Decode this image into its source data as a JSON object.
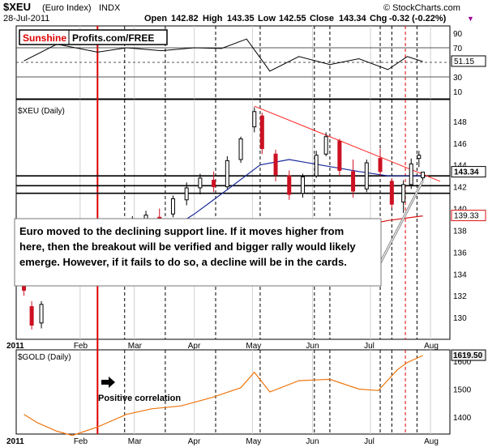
{
  "header": {
    "symbol": "$XEU",
    "name": "(Euro Index)",
    "exchange": "INDX",
    "date": "28-Jul-2011",
    "open_label": "Open",
    "open": "142.82",
    "high_label": "High",
    "high": "143.35",
    "low_label": "Low",
    "low": "142.55",
    "close_label": "Close",
    "close": "143.34",
    "chg_label": "Chg",
    "chg": "-0.32 (-0.22%)",
    "chg_marker": "▼",
    "copyright": "© StockCharts.com"
  },
  "watermark": {
    "brand_red": "Sunshine",
    "brand_black": "Profits.com/FREE"
  },
  "colors": {
    "candle_up": "#000000",
    "candle_down": "#cc1122",
    "ma_fast": "#1a2a9a",
    "ma_slow": "#dd1111",
    "resistance": "#ff2222",
    "gold": "#ee7711",
    "event_line": "#dd0000",
    "price_badge": "#ffffff",
    "gold_badge": "#eeeeee"
  },
  "annotations": {
    "commentary": [
      "Euro moved to the declining support line. If it moves higher from",
      "here, then the breakout will be verified and bigger rally would likely",
      "emerge. However, if it fails to do so, a decline will be in the cards."
    ],
    "positive_correlation": "Positive correlation"
  },
  "chart_data": [
    {
      "type": "line",
      "panel": "rsi",
      "ylim": [
        0,
        100
      ],
      "yticks": [
        "90",
        "70",
        "50",
        "30",
        "10"
      ],
      "levels": [
        70,
        50,
        30
      ],
      "last_value": "51.15",
      "x": [
        "2011-01-03",
        "2011-01-20",
        "2011-02-10",
        "2011-02-25",
        "2011-03-15",
        "2011-04-01",
        "2011-04-15",
        "2011-04-28",
        "2011-05-10",
        "2011-05-25",
        "2011-06-10",
        "2011-06-25",
        "2011-07-10",
        "2011-07-20",
        "2011-07-28"
      ],
      "values": [
        52,
        75,
        64,
        70,
        66,
        70,
        69,
        82,
        38,
        58,
        47,
        55,
        40,
        58,
        51.15
      ]
    },
    {
      "type": "candlestick",
      "panel": "price",
      "title": "$XEU (Daily)",
      "ylim": [
        128,
        150
      ],
      "yticks": [
        "148",
        "146",
        "144",
        "142",
        "140",
        "138",
        "136",
        "134",
        "132",
        "130"
      ],
      "xticks": [
        "2011",
        "Feb",
        "Mar",
        "Apr",
        "May",
        "Jun",
        "Jul",
        "Aug"
      ],
      "last_close": "143.34",
      "slow_ma_last": "139.33",
      "horizontal_levels": [
        143.0,
        142.1,
        141.4
      ],
      "candles": [
        {
          "date": "2011-01-03",
          "open": 133.0,
          "high": 134.0,
          "low": 132.0,
          "close": 132.5
        },
        {
          "date": "2011-01-07",
          "open": 131.0,
          "high": 131.5,
          "low": 128.9,
          "close": 129.3
        },
        {
          "date": "2011-01-12",
          "open": 129.5,
          "high": 131.5,
          "low": 129.0,
          "close": 131.2
        },
        {
          "date": "2011-01-18",
          "open": 133.5,
          "high": 135.5,
          "low": 133.0,
          "close": 135.2
        },
        {
          "date": "2011-01-24",
          "open": 135.8,
          "high": 137.0,
          "low": 135.5,
          "close": 136.7
        },
        {
          "date": "2011-01-31",
          "open": 136.6,
          "high": 138.5,
          "low": 136.2,
          "close": 137.9
        },
        {
          "date": "2011-02-07",
          "open": 137.2,
          "high": 137.8,
          "low": 135.5,
          "close": 136.0
        },
        {
          "date": "2011-02-14",
          "open": 136.0,
          "high": 137.2,
          "low": 135.6,
          "close": 136.8
        },
        {
          "date": "2011-02-21",
          "open": 137.0,
          "high": 138.5,
          "low": 136.8,
          "close": 138.2
        },
        {
          "date": "2011-02-28",
          "open": 138.2,
          "high": 139.3,
          "low": 137.9,
          "close": 139.0
        },
        {
          "date": "2011-03-07",
          "open": 139.0,
          "high": 139.8,
          "low": 138.2,
          "close": 139.4
        },
        {
          "date": "2011-03-14",
          "open": 139.2,
          "high": 140.0,
          "low": 138.0,
          "close": 138.7
        },
        {
          "date": "2011-03-21",
          "open": 139.5,
          "high": 141.2,
          "low": 139.2,
          "close": 140.9
        },
        {
          "date": "2011-03-28",
          "open": 140.8,
          "high": 142.4,
          "low": 140.3,
          "close": 141.9
        },
        {
          "date": "2011-04-04",
          "open": 141.9,
          "high": 143.2,
          "low": 141.3,
          "close": 142.8
        },
        {
          "date": "2011-04-11",
          "open": 142.6,
          "high": 143.4,
          "low": 141.5,
          "close": 142.0
        },
        {
          "date": "2011-04-18",
          "open": 142.0,
          "high": 144.8,
          "low": 141.8,
          "close": 144.4
        },
        {
          "date": "2011-04-25",
          "open": 144.5,
          "high": 146.6,
          "low": 144.2,
          "close": 146.4
        },
        {
          "date": "2011-05-02",
          "open": 147.5,
          "high": 149.3,
          "low": 147.0,
          "close": 148.9
        },
        {
          "date": "2011-05-06",
          "open": 148.5,
          "high": 148.8,
          "low": 145.0,
          "close": 145.5
        },
        {
          "date": "2011-05-13",
          "open": 145.0,
          "high": 145.4,
          "low": 142.5,
          "close": 143.1
        },
        {
          "date": "2011-05-20",
          "open": 143.0,
          "high": 143.5,
          "low": 140.8,
          "close": 141.3
        },
        {
          "date": "2011-05-27",
          "open": 141.4,
          "high": 143.2,
          "low": 141.0,
          "close": 142.9
        },
        {
          "date": "2011-06-03",
          "open": 143.0,
          "high": 145.3,
          "low": 142.8,
          "close": 144.9
        },
        {
          "date": "2011-06-08",
          "open": 145.0,
          "high": 147.0,
          "low": 144.8,
          "close": 146.6
        },
        {
          "date": "2011-06-15",
          "open": 146.2,
          "high": 146.4,
          "low": 143.0,
          "close": 143.5
        },
        {
          "date": "2011-06-22",
          "open": 143.4,
          "high": 144.5,
          "low": 141.0,
          "close": 141.6
        },
        {
          "date": "2011-06-29",
          "open": 141.8,
          "high": 144.5,
          "low": 141.5,
          "close": 144.2
        },
        {
          "date": "2011-07-06",
          "open": 144.6,
          "high": 145.5,
          "low": 143.0,
          "close": 143.4
        },
        {
          "date": "2011-07-12",
          "open": 142.5,
          "high": 142.8,
          "low": 140.0,
          "close": 140.4
        },
        {
          "date": "2011-07-18",
          "open": 140.6,
          "high": 142.6,
          "low": 139.6,
          "close": 142.2
        },
        {
          "date": "2011-07-22",
          "open": 142.2,
          "high": 144.6,
          "low": 141.8,
          "close": 144.1
        },
        {
          "date": "2011-07-26",
          "open": 144.6,
          "high": 145.3,
          "low": 143.8,
          "close": 144.9
        },
        {
          "date": "2011-07-28",
          "open": 142.82,
          "high": 143.35,
          "low": 142.55,
          "close": 143.34
        }
      ],
      "fast_ma": [
        {
          "x": "2011-02-01",
          "y": 133.2
        },
        {
          "x": "2011-02-20",
          "y": 135.0
        },
        {
          "x": "2011-03-10",
          "y": 137.0
        },
        {
          "x": "2011-04-01",
          "y": 139.5
        },
        {
          "x": "2011-04-20",
          "y": 142.0
        },
        {
          "x": "2011-05-05",
          "y": 144.0
        },
        {
          "x": "2011-05-20",
          "y": 144.5
        },
        {
          "x": "2011-06-05",
          "y": 144.0
        },
        {
          "x": "2011-06-25",
          "y": 143.4
        },
        {
          "x": "2011-07-10",
          "y": 143.0
        },
        {
          "x": "2011-07-28",
          "y": 143.0
        }
      ],
      "slow_ma": [
        {
          "x": "2011-01-01",
          "y": 133.4
        },
        {
          "x": "2011-02-15",
          "y": 134.0
        },
        {
          "x": "2011-03-15",
          "y": 134.6
        },
        {
          "x": "2011-04-15",
          "y": 135.6
        },
        {
          "x": "2011-05-15",
          "y": 136.8
        },
        {
          "x": "2011-06-15",
          "y": 138.0
        },
        {
          "x": "2011-07-10",
          "y": 138.9
        },
        {
          "x": "2011-07-28",
          "y": 139.33
        }
      ],
      "resistance_line": [
        {
          "x": "2011-05-02",
          "y": 149.4
        },
        {
          "x": "2011-08-06",
          "y": 142.5
        }
      ]
    },
    {
      "type": "line",
      "panel": "gold",
      "title": "$GOLD (Daily)",
      "ylim": [
        1340,
        1640
      ],
      "yticks": [
        "1600",
        "1500",
        "1400"
      ],
      "xticks": [
        "2011",
        "Feb",
        "Mar",
        "Apr",
        "May",
        "Jun",
        "Jul",
        "Aug"
      ],
      "last_value": "1619.50",
      "x": [
        "2011-01-03",
        "2011-01-10",
        "2011-01-20",
        "2011-01-28",
        "2011-02-10",
        "2011-02-25",
        "2011-03-10",
        "2011-03-25",
        "2011-04-10",
        "2011-04-25",
        "2011-05-02",
        "2011-05-10",
        "2011-05-25",
        "2011-06-10",
        "2011-06-25",
        "2011-07-05",
        "2011-07-15",
        "2011-07-20",
        "2011-07-28"
      ],
      "values": [
        1410,
        1380,
        1350,
        1335,
        1365,
        1410,
        1430,
        1440,
        1470,
        1505,
        1560,
        1490,
        1530,
        1535,
        1500,
        1495,
        1570,
        1595,
        1619.5
      ]
    }
  ]
}
